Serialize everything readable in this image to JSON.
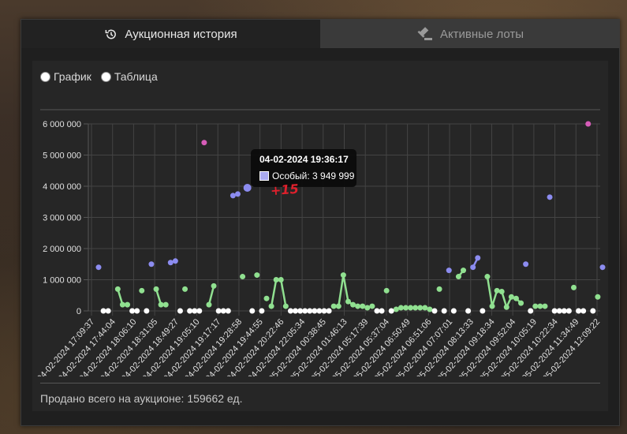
{
  "tabs": [
    {
      "label": "Аукционная история",
      "icon": "history-icon",
      "active": true
    },
    {
      "label": "Активные лоты",
      "icon": "gavel-icon",
      "active": false
    }
  ],
  "view_options": [
    {
      "label": "График"
    },
    {
      "label": "Таблица"
    }
  ],
  "tooltip": {
    "title": "04-02-2024 19:36:17",
    "label": "Особый: 3 949 999"
  },
  "annotation": "+15",
  "footer": "Продано всего на аукционе: 159662 ед.",
  "colors": {
    "green": "#90e090",
    "blue": "#8c8cf0",
    "white": "#ffffff",
    "pink": "#d65cb8",
    "tab_inactive": "#3a3a3a",
    "panel": "#262626"
  },
  "chart_data": {
    "type": "line",
    "ylim": [
      0,
      6000000
    ],
    "y_ticks": [
      0,
      1000000,
      2000000,
      3000000,
      4000000,
      5000000,
      6000000
    ],
    "y_tick_labels": [
      "0",
      "1 000 000",
      "2 000 000",
      "3 000 000",
      "4 000 000",
      "5 000 000",
      "6 000 000"
    ],
    "x_tick_labels": [
      "04-02-2024 17:09:37",
      "04-02-2024 17:44:04",
      "04-02-2024 18:06:10",
      "04-02-2024 18:31:05",
      "04-02-2024 18:49:27",
      "04-02-2024 19:05:10",
      "04-02-2024 19:17:17",
      "04-02-2024 19:28:58",
      "04-02-2024 19:44:55",
      "04-02-2024 20:22:46",
      "04-02-2024 22:05:34",
      "05-02-2024 00:38:45",
      "05-02-2024 01:46:13",
      "05-02-2024 05:17:39",
      "05-02-2024 05:37:04",
      "05-02-2024 06:50:49",
      "05-02-2024 06:51:06",
      "05-02-2024 07:07:01",
      "05-02-2024 08:13:33",
      "05-02-2024 09:18:34",
      "05-02-2024 09:52:04",
      "05-02-2024 10:05:19",
      "05-02-2024 10:22:34",
      "05-02-2024 11:34:49",
      "05-02-2024 12:09:22"
    ],
    "series": [
      {
        "color": "green",
        "points": [
          [
            4,
            700000
          ],
          [
            5,
            200000
          ],
          [
            6,
            200000
          ]
        ]
      },
      {
        "color": "green",
        "points": [
          [
            12,
            700000
          ],
          [
            13,
            200000
          ],
          [
            14,
            200000
          ]
        ]
      },
      {
        "color": "green",
        "points": [
          [
            23,
            200000
          ],
          [
            24,
            800000
          ]
        ]
      },
      {
        "color": "green",
        "points": [
          [
            36,
            150000
          ],
          [
            37,
            1000000
          ],
          [
            38,
            1000000
          ],
          [
            39,
            150000
          ]
        ]
      },
      {
        "color": "green",
        "points": [
          [
            49,
            150000
          ],
          [
            50,
            150000
          ],
          [
            51,
            1150000
          ],
          [
            52,
            300000
          ],
          [
            53,
            200000
          ],
          [
            54,
            150000
          ],
          [
            55,
            150000
          ],
          [
            56,
            100000
          ],
          [
            57,
            150000
          ]
        ]
      },
      {
        "color": "green",
        "points": [
          [
            62,
            50000
          ],
          [
            63,
            100000
          ],
          [
            64,
            100000
          ],
          [
            65,
            100000
          ],
          [
            66,
            100000
          ],
          [
            67,
            100000
          ],
          [
            68,
            100000
          ],
          [
            69,
            50000
          ]
        ]
      },
      {
        "color": "green",
        "points": [
          [
            75,
            1100000
          ],
          [
            76,
            1300000
          ]
        ]
      },
      {
        "color": "green",
        "points": [
          [
            81,
            1100000
          ],
          [
            82,
            150000
          ],
          [
            83,
            650000
          ],
          [
            84,
            620000
          ],
          [
            85,
            120000
          ],
          [
            86,
            450000
          ],
          [
            87,
            400000
          ],
          [
            88,
            250000
          ]
        ]
      },
      {
        "color": "green",
        "points": [
          [
            91,
            150000
          ],
          [
            92,
            150000
          ],
          [
            93,
            150000
          ]
        ]
      },
      {
        "color": "blue",
        "points": [
          [
            78,
            1400000
          ],
          [
            79,
            1700000
          ]
        ]
      }
    ],
    "points": [
      [
        0,
        1400000,
        "blue"
      ],
      [
        1,
        0,
        "white"
      ],
      [
        2,
        0,
        "white"
      ],
      [
        7,
        0,
        "white"
      ],
      [
        8,
        0,
        "white"
      ],
      [
        9,
        650000,
        "green"
      ],
      [
        10,
        0,
        "white"
      ],
      [
        11,
        1500000,
        "blue"
      ],
      [
        15,
        1550000,
        "blue"
      ],
      [
        16,
        1600000,
        "blue"
      ],
      [
        17,
        0,
        "white"
      ],
      [
        18,
        700000,
        "green"
      ],
      [
        19,
        0,
        "white"
      ],
      [
        20,
        0,
        "white"
      ],
      [
        21,
        0,
        "white"
      ],
      [
        22,
        5400000,
        "pink"
      ],
      [
        25,
        0,
        "white"
      ],
      [
        26,
        0,
        "white"
      ],
      [
        27,
        0,
        "white"
      ],
      [
        28,
        3700000,
        "blue"
      ],
      [
        29,
        3750000,
        "blue"
      ],
      [
        30,
        1100000,
        "green"
      ],
      [
        31,
        3949999,
        "blue"
      ],
      [
        32,
        0,
        "white"
      ],
      [
        33,
        1150000,
        "green"
      ],
      [
        34,
        0,
        "white"
      ],
      [
        35,
        400000,
        "green"
      ],
      [
        40,
        0,
        "white"
      ],
      [
        41,
        0,
        "white"
      ],
      [
        42,
        0,
        "white"
      ],
      [
        43,
        0,
        "white"
      ],
      [
        44,
        0,
        "white"
      ],
      [
        45,
        0,
        "white"
      ],
      [
        46,
        0,
        "white"
      ],
      [
        47,
        0,
        "white"
      ],
      [
        48,
        0,
        "white"
      ],
      [
        58,
        0,
        "white"
      ],
      [
        59,
        0,
        "white"
      ],
      [
        60,
        650000,
        "green"
      ],
      [
        61,
        0,
        "white"
      ],
      [
        70,
        0,
        "white"
      ],
      [
        71,
        700000,
        "green"
      ],
      [
        72,
        0,
        "white"
      ],
      [
        73,
        1300000,
        "blue"
      ],
      [
        74,
        0,
        "white"
      ],
      [
        77,
        0,
        "white"
      ],
      [
        80,
        0,
        "white"
      ],
      [
        89,
        1500000,
        "blue"
      ],
      [
        90,
        0,
        "white"
      ],
      [
        94,
        3650000,
        "blue"
      ],
      [
        95,
        0,
        "white"
      ],
      [
        96,
        0,
        "white"
      ],
      [
        97,
        0,
        "white"
      ],
      [
        98,
        0,
        "white"
      ],
      [
        99,
        750000,
        "green"
      ],
      [
        100,
        0,
        "white"
      ],
      [
        101,
        0,
        "white"
      ],
      [
        102,
        6000000,
        "pink"
      ],
      [
        103,
        0,
        "white"
      ],
      [
        104,
        450000,
        "green"
      ],
      [
        105,
        1400000,
        "blue"
      ]
    ]
  }
}
